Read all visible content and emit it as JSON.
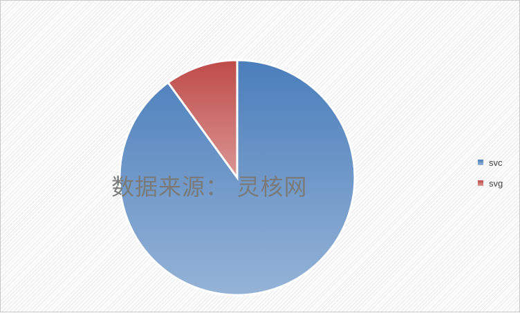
{
  "chart_data": {
    "type": "pie",
    "categories": [
      "svc",
      "svg"
    ],
    "values": [
      90,
      10
    ],
    "colors": [
      "#4f81bd",
      "#c0504d"
    ],
    "legend_position": "right",
    "start": "top, clockwise"
  },
  "watermark": "数据来源： 灵核网"
}
